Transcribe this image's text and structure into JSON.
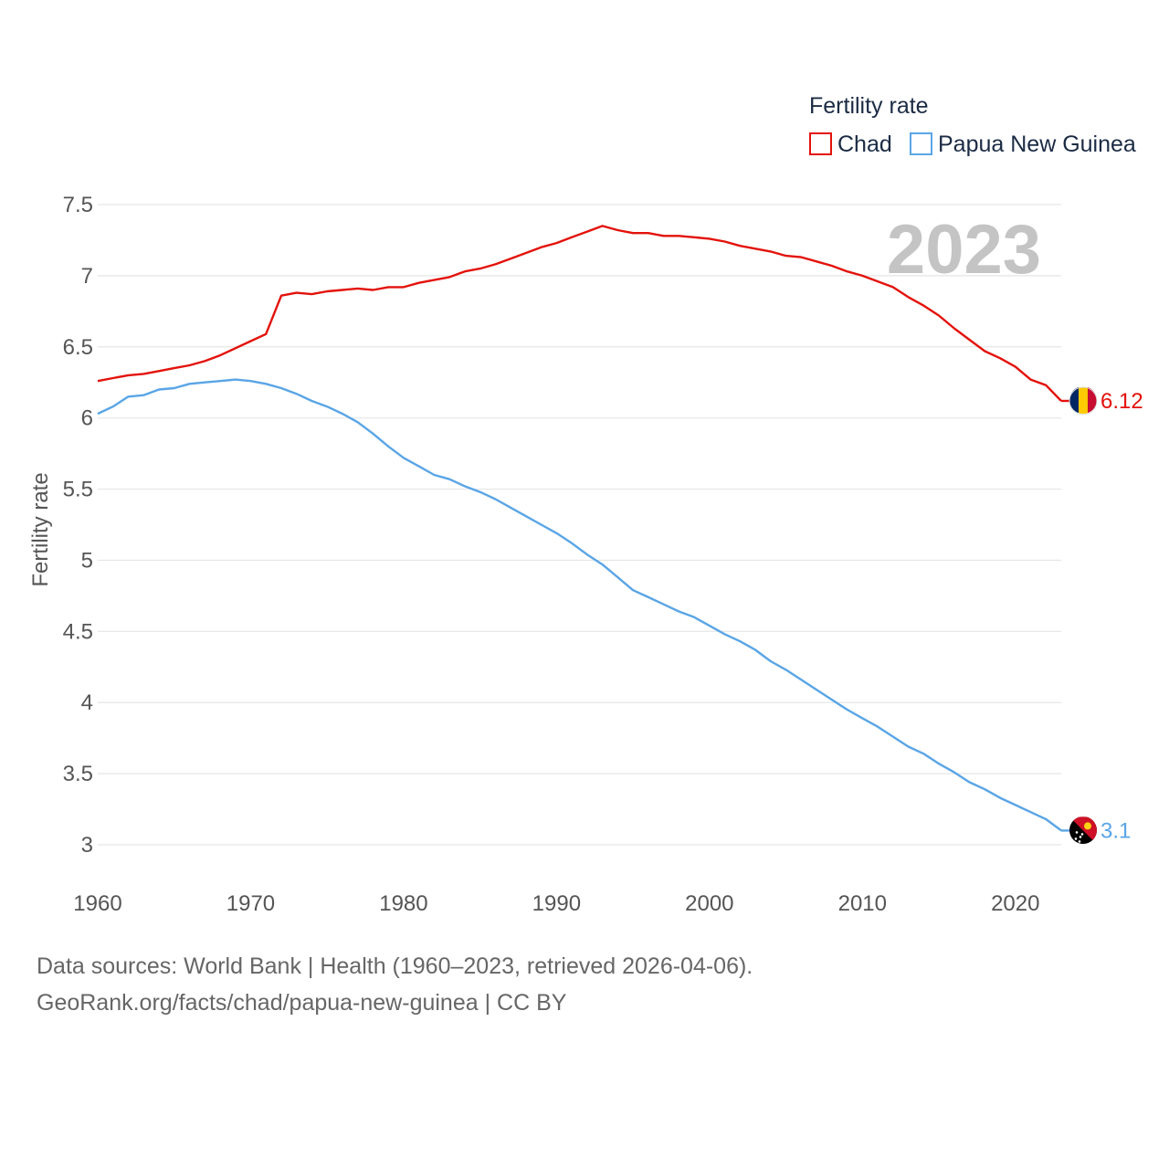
{
  "chart_data": {
    "type": "line",
    "year_label": "2023",
    "legend_title": "Fertility rate",
    "ylabel": "Fertility rate",
    "xlim": [
      1960,
      2023
    ],
    "ylim": [
      3,
      7.5
    ],
    "y_ticks": [
      3,
      3.5,
      4,
      4.5,
      5,
      5.5,
      6,
      6.5,
      7,
      7.5
    ],
    "y_tick_labels": [
      "3",
      "3.5",
      "4",
      "4.5",
      "5",
      "5.5",
      "6",
      "6.5",
      "7",
      "7.5"
    ],
    "x_ticks": [
      1960,
      1970,
      1980,
      1990,
      2000,
      2010,
      2020
    ],
    "x_tick_labels": [
      "1960",
      "1970",
      "1980",
      "1990",
      "2000",
      "2010",
      "2020"
    ],
    "x": [
      1960,
      1961,
      1962,
      1963,
      1964,
      1965,
      1966,
      1967,
      1968,
      1969,
      1970,
      1971,
      1972,
      1973,
      1974,
      1975,
      1976,
      1977,
      1978,
      1979,
      1980,
      1981,
      1982,
      1983,
      1984,
      1985,
      1986,
      1987,
      1988,
      1989,
      1990,
      1991,
      1992,
      1993,
      1994,
      1995,
      1996,
      1997,
      1998,
      1999,
      2000,
      2001,
      2002,
      2003,
      2004,
      2005,
      2006,
      2007,
      2008,
      2009,
      2010,
      2011,
      2012,
      2013,
      2014,
      2015,
      2016,
      2017,
      2018,
      2019,
      2020,
      2021,
      2022,
      2023
    ],
    "series": [
      {
        "name": "Chad",
        "color": "#e3120b",
        "end_label": "6.12",
        "flag": "chad-flag-icon",
        "values": [
          6.26,
          6.28,
          6.3,
          6.31,
          6.33,
          6.35,
          6.37,
          6.4,
          6.44,
          6.49,
          6.54,
          6.59,
          6.86,
          6.88,
          6.87,
          6.89,
          6.9,
          6.91,
          6.9,
          6.92,
          6.92,
          6.95,
          6.97,
          6.99,
          7.03,
          7.05,
          7.08,
          7.12,
          7.16,
          7.2,
          7.23,
          7.27,
          7.31,
          7.35,
          7.32,
          7.3,
          7.3,
          7.28,
          7.28,
          7.27,
          7.26,
          7.24,
          7.21,
          7.19,
          7.17,
          7.14,
          7.13,
          7.1,
          7.07,
          7.03,
          7.0,
          6.96,
          6.92,
          6.85,
          6.79,
          6.72,
          6.63,
          6.55,
          6.47,
          6.42,
          6.36,
          6.27,
          6.23,
          6.12
        ]
      },
      {
        "name": "Papua New Guinea",
        "color": "#5aa5e6",
        "end_label": "3.1",
        "flag": "papua-new-guinea-flag-icon",
        "values": [
          6.03,
          6.08,
          6.15,
          6.16,
          6.2,
          6.21,
          6.24,
          6.25,
          6.26,
          6.27,
          6.26,
          6.24,
          6.21,
          6.17,
          6.12,
          6.08,
          6.03,
          5.97,
          5.89,
          5.8,
          5.72,
          5.66,
          5.6,
          5.57,
          5.52,
          5.48,
          5.43,
          5.37,
          5.31,
          5.25,
          5.19,
          5.12,
          5.04,
          4.97,
          4.88,
          4.79,
          4.74,
          4.69,
          4.64,
          4.6,
          4.54,
          4.48,
          4.43,
          4.37,
          4.29,
          4.23,
          4.16,
          4.09,
          4.02,
          3.95,
          3.89,
          3.83,
          3.76,
          3.69,
          3.64,
          3.57,
          3.51,
          3.44,
          3.39,
          3.33,
          3.28,
          3.23,
          3.18,
          3.1
        ]
      }
    ]
  },
  "footer": {
    "line1": "Data sources: World Bank | Health (1960–2023, retrieved 2026-04-06).",
    "line2": "GeoRank.org/facts/chad/papua-new-guinea | CC BY"
  }
}
